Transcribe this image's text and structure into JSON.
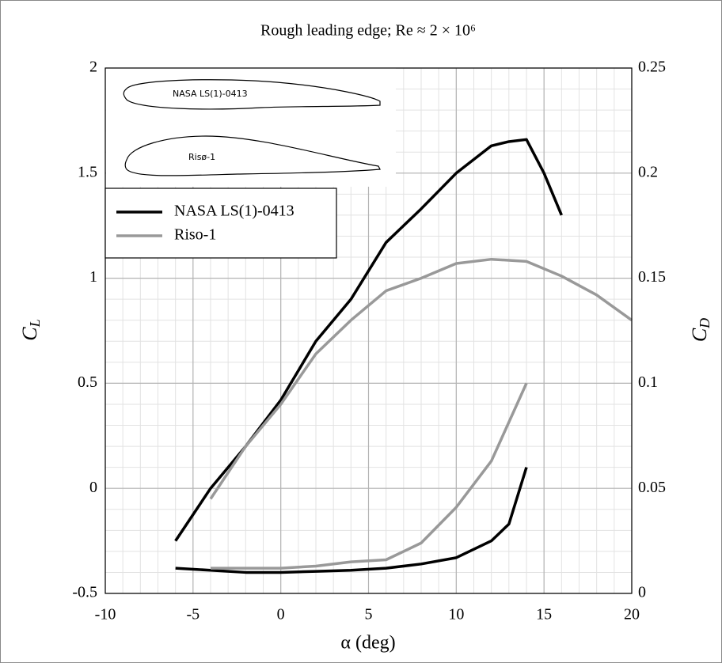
{
  "chart_data": {
    "type": "line",
    "title": "Rough leading edge; Re ≈ 2 × 10⁶",
    "x_label": "α (deg)",
    "y_label": {
      "text": "C",
      "subscript": "L"
    },
    "y2_label": {
      "text": "C",
      "subscript": "D"
    },
    "inset_labels": [
      "NASA LS(1)-0413",
      "Risø-1"
    ],
    "xlim": [
      -10,
      20
    ],
    "xticks": [
      -10,
      -5,
      0,
      5,
      10,
      15,
      20
    ],
    "ylim": [
      -0.5,
      2
    ],
    "yticks": [
      -0.5,
      0,
      0.5,
      1,
      1.5,
      2
    ],
    "y2lim": [
      0,
      0.25
    ],
    "y2ticks": [
      0,
      0.05,
      0.1,
      0.15,
      0.2,
      0.25
    ],
    "grid": true,
    "minor_grid": {
      "x": 1,
      "y": 0.1
    },
    "legend": "upper left",
    "series": [
      {
        "name": "NASA LS(1)-0413",
        "color": "#000000",
        "x": [
          -6,
          -4,
          -2,
          0,
          2,
          4,
          6,
          8,
          10,
          12,
          13,
          14,
          15,
          16
        ],
        "values": [
          -0.25,
          0,
          0.2,
          0.42,
          0.7,
          0.9,
          1.17,
          1.33,
          1.5,
          1.63,
          1.65,
          1.66,
          1.5,
          1.3
        ]
      },
      {
        "name": "Riso-1",
        "color": "#999999",
        "x": [
          -4,
          -2,
          0,
          2,
          4,
          6,
          8,
          10,
          12,
          14,
          16,
          18,
          20
        ],
        "values": [
          -0.05,
          0.2,
          0.4,
          0.64,
          0.8,
          0.94,
          1.0,
          1.07,
          1.09,
          1.08,
          1.01,
          0.92,
          0.8
        ]
      },
      {
        "color": "#000000",
        "axis": "y2",
        "x": [
          -6,
          -4,
          -2,
          0,
          2,
          4,
          6,
          8,
          10,
          12,
          13,
          14
        ],
        "values": [
          0.012,
          0.011,
          0.01,
          0.01,
          0.0105,
          0.011,
          0.012,
          0.014,
          0.017,
          0.025,
          0.033,
          0.06
        ]
      },
      {
        "color": "#999999",
        "axis": "y2",
        "x": [
          -4,
          0,
          2,
          4,
          6,
          8,
          10,
          12,
          14
        ],
        "values": [
          0.012,
          0.012,
          0.013,
          0.015,
          0.016,
          0.024,
          0.041,
          0.063,
          0.1
        ]
      }
    ]
  }
}
